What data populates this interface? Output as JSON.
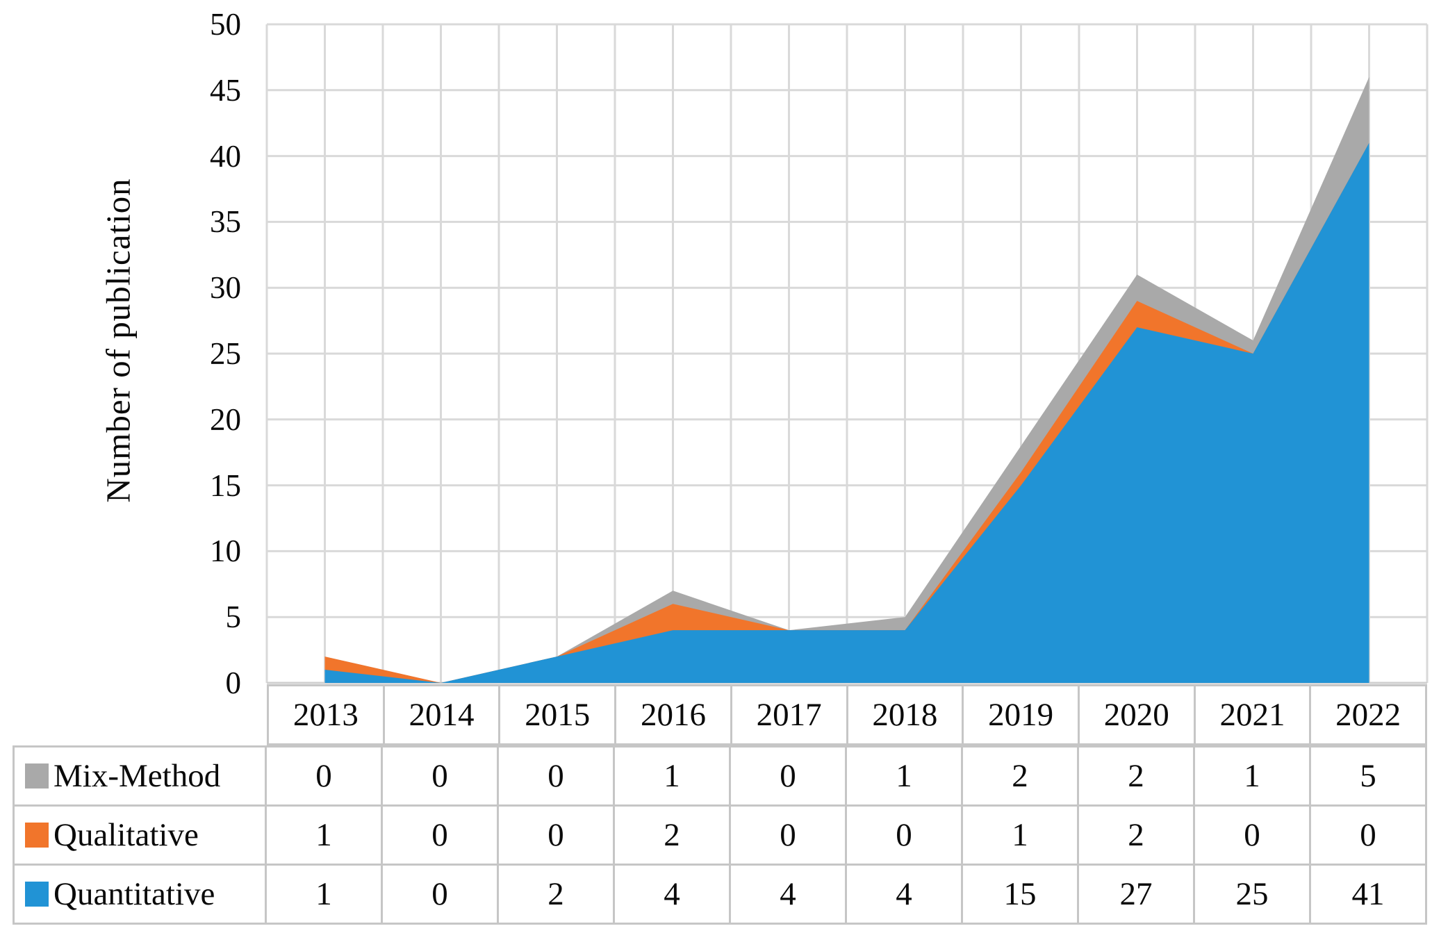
{
  "figure": {
    "background": "#ffffff",
    "text_color": "#0a0a0a"
  },
  "colors": {
    "quantitative_blue": "#2193d5",
    "qualitative_orange": "#f1752b",
    "mix_method_gray": "#a9a9a9",
    "gridline": "#d9d9d9",
    "axis_line": "#cfcfcf",
    "table_border": "#c6c6c6"
  },
  "chart_data": {
    "type": "area",
    "stacked": true,
    "title": "",
    "xlabel": "",
    "ylabel": "Number of publication",
    "ylim": [
      0,
      50
    ],
    "ytick_step": 5,
    "ytick_labels": [
      "0",
      "5",
      "10",
      "15",
      "20",
      "25",
      "30",
      "35",
      "40",
      "45",
      "50"
    ],
    "grid": "both",
    "legend_position": "data-table-left",
    "categories": [
      "2013",
      "2014",
      "2015",
      "2016",
      "2017",
      "2018",
      "2019",
      "2020",
      "2021",
      "2022"
    ],
    "series": [
      {
        "name": "Quantitative",
        "color": "#2193d5",
        "values": [
          1,
          0,
          2,
          4,
          4,
          4,
          15,
          27,
          25,
          41
        ]
      },
      {
        "name": "Qualitative",
        "color": "#f1752b",
        "values": [
          1,
          0,
          0,
          2,
          0,
          0,
          1,
          2,
          0,
          0
        ]
      },
      {
        "name": "Mix-Method",
        "color": "#a9a9a9",
        "values": [
          0,
          0,
          0,
          1,
          0,
          1,
          2,
          2,
          1,
          5
        ]
      }
    ]
  },
  "table": {
    "header_years": [
      "2013",
      "2014",
      "2015",
      "2016",
      "2017",
      "2018",
      "2019",
      "2020",
      "2021",
      "2022"
    ],
    "rows": [
      {
        "label": "Mix-Method",
        "swatch_color": "#a9a9a9",
        "values": [
          "0",
          "0",
          "0",
          "1",
          "0",
          "1",
          "2",
          "2",
          "1",
          "5"
        ]
      },
      {
        "label": "Qualitative",
        "swatch_color": "#f1752b",
        "values": [
          "1",
          "0",
          "0",
          "2",
          "0",
          "0",
          "1",
          "2",
          "0",
          "0"
        ]
      },
      {
        "label": "Quantitative",
        "swatch_color": "#2193d5",
        "values": [
          "1",
          "0",
          "2",
          "4",
          "4",
          "4",
          "15",
          "27",
          "25",
          "41"
        ]
      }
    ]
  }
}
